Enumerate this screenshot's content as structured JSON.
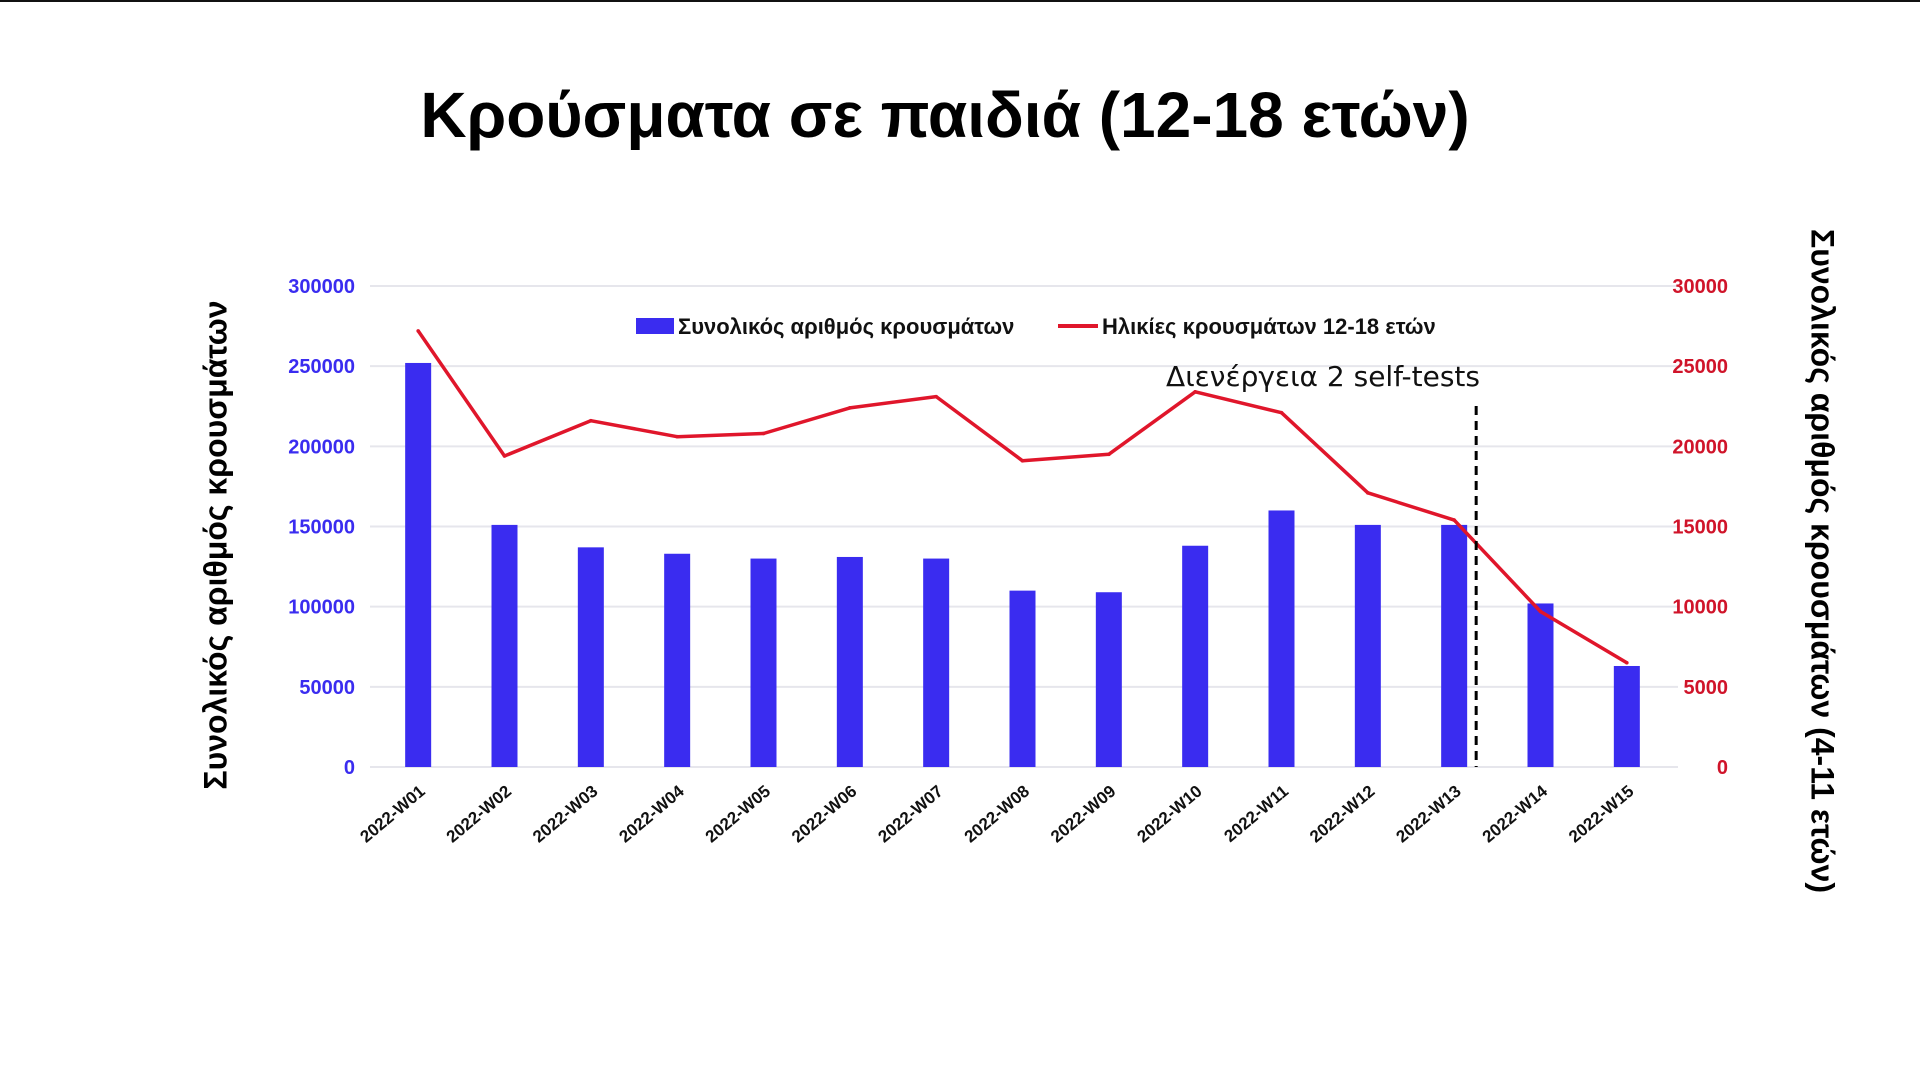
{
  "chart_data": {
    "type": "bar",
    "title": "Κρούσματα σε παιδιά (12-18 ετών)",
    "ylabel": "Συνολικός αριθμός κρουσμάτων",
    "y2label": "Συνολικός αριθμός κρουσμάτων (4-11 ετών)",
    "categories": [
      "2022-W01",
      "2022-W02",
      "2022-W03",
      "2022-W04",
      "2022-W05",
      "2022-W06",
      "2022-W07",
      "2022-W08",
      "2022-W09",
      "2022-W10",
      "2022-W11",
      "2022-W12",
      "2022-W13",
      "2022-W14",
      "2022-W15"
    ],
    "ylim": [
      0,
      300000
    ],
    "y2lim": [
      0,
      30000
    ],
    "yticks": [
      "0",
      "50000",
      "100000",
      "150000",
      "200000",
      "250000",
      "300000"
    ],
    "y2ticks": [
      "0",
      "5000",
      "10000",
      "15000",
      "20000",
      "25000",
      "30000"
    ],
    "grid": true,
    "legend_position": "top-center",
    "series": [
      {
        "name": "Συνολικός αριθμός κρουσμάτων",
        "type": "bar",
        "axis": "left",
        "color": "#3a2cf0",
        "values": [
          252000,
          151000,
          137000,
          133000,
          130000,
          131000,
          130000,
          110000,
          109000,
          138000,
          160000,
          151000,
          151000,
          102000,
          63000
        ]
      },
      {
        "name": "Ηλικίες κρουσμάτων 12-18 ετών",
        "type": "line",
        "axis": "right",
        "color": "#e0162b",
        "values": [
          27200,
          19400,
          21600,
          20600,
          20800,
          22400,
          23100,
          19100,
          19500,
          23400,
          22100,
          17100,
          15400,
          9700,
          6500
        ]
      }
    ],
    "annotation": {
      "text": "Διενέργεια 2 self-tests",
      "after_category": "2022-W13"
    },
    "left_axis_color": "#3a2cf0",
    "right_axis_color": "#d0142a"
  }
}
